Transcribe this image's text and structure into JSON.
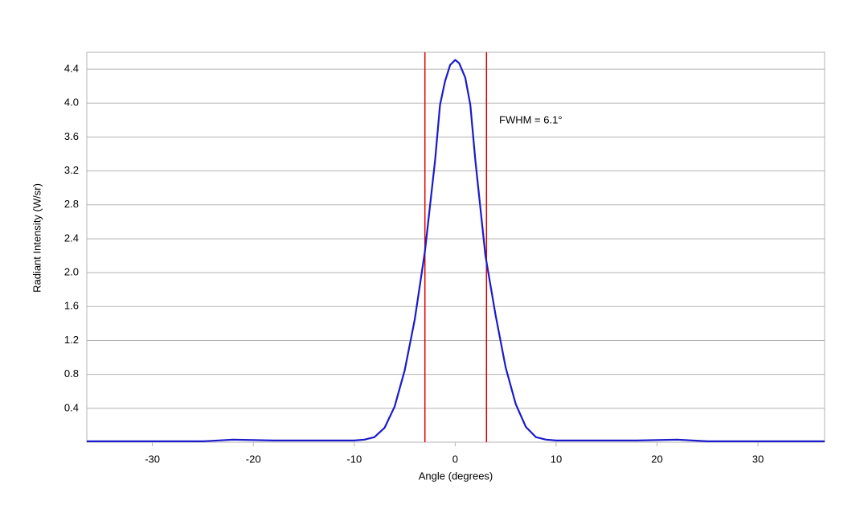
{
  "chart_data": {
    "type": "line",
    "x_label": "Angle (degrees)",
    "y_label": "Radiant Intensity (W/sr)",
    "annotation": "FWHM = 6.1°",
    "x": [
      -36.5,
      -30,
      -25,
      -22,
      -18,
      -14,
      -12,
      -10,
      -9,
      -8,
      -7,
      -6,
      -5,
      -4,
      -3,
      -2,
      -1.5,
      -1,
      -0.5,
      0,
      0.4,
      1,
      1.5,
      2,
      3,
      4,
      5,
      6,
      7,
      8,
      9,
      10,
      12,
      14,
      18,
      22,
      25,
      30,
      36.6
    ],
    "series": [
      {
        "name": "Radiant Intensity",
        "color": "#1a1acc",
        "values": [
          0.01,
          0.01,
          0.01,
          0.03,
          0.02,
          0.02,
          0.02,
          0.02,
          0.03,
          0.06,
          0.17,
          0.42,
          0.85,
          1.45,
          2.25,
          3.32,
          3.98,
          4.26,
          4.45,
          4.51,
          4.47,
          4.3,
          3.98,
          3.32,
          2.2,
          1.5,
          0.88,
          0.45,
          0.18,
          0.06,
          0.03,
          0.02,
          0.02,
          0.02,
          0.02,
          0.03,
          0.01,
          0.01,
          0.01
        ]
      }
    ],
    "vlines": [
      -3.0,
      3.1
    ],
    "vline_color": "#e00000",
    "xlim": [
      -36.5,
      36.6
    ],
    "ylim": [
      0,
      4.6
    ],
    "xticks": [
      -30,
      -20,
      -10,
      0,
      10,
      20,
      30
    ],
    "yticks": [
      0.4,
      0.8,
      1.2,
      1.6,
      {
        "value": 2,
        "label": "2.0"
      },
      2.4,
      2.8,
      3.2,
      3.6,
      {
        "value": 4,
        "label": "4.0"
      },
      4.4
    ],
    "grid": true
  }
}
